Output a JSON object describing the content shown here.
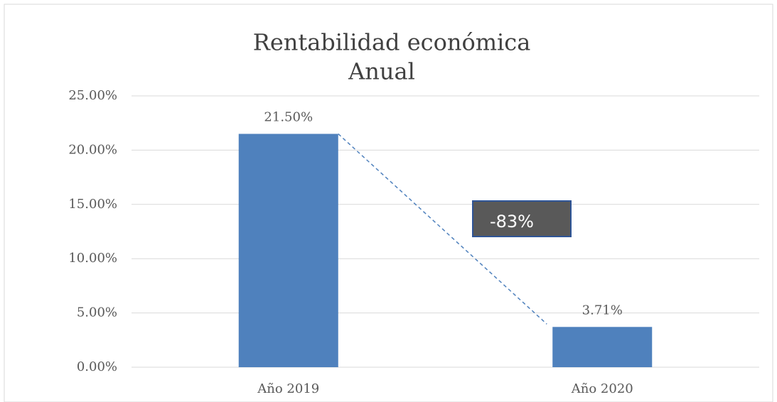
{
  "chart_data": {
    "type": "bar",
    "title": [
      "Rentabilidad económica",
      "Anual"
    ],
    "categories": [
      "Año 2019",
      "Año 2020"
    ],
    "values": [
      21.5,
      3.71
    ],
    "value_labels": [
      "21.50%",
      "3.71%"
    ],
    "color": "#4f81bd",
    "ylim": [
      0,
      25
    ],
    "yticks": [
      {
        "value": 0,
        "label": "0.00%"
      },
      {
        "value": 5,
        "label": "5.00%"
      },
      {
        "value": 10,
        "label": "10.00%"
      },
      {
        "value": 15,
        "label": "15.00%"
      },
      {
        "value": 20,
        "label": "20.00%"
      },
      {
        "value": 25,
        "label": "25.00%"
      }
    ],
    "grid": true,
    "annotation": "-83%"
  }
}
